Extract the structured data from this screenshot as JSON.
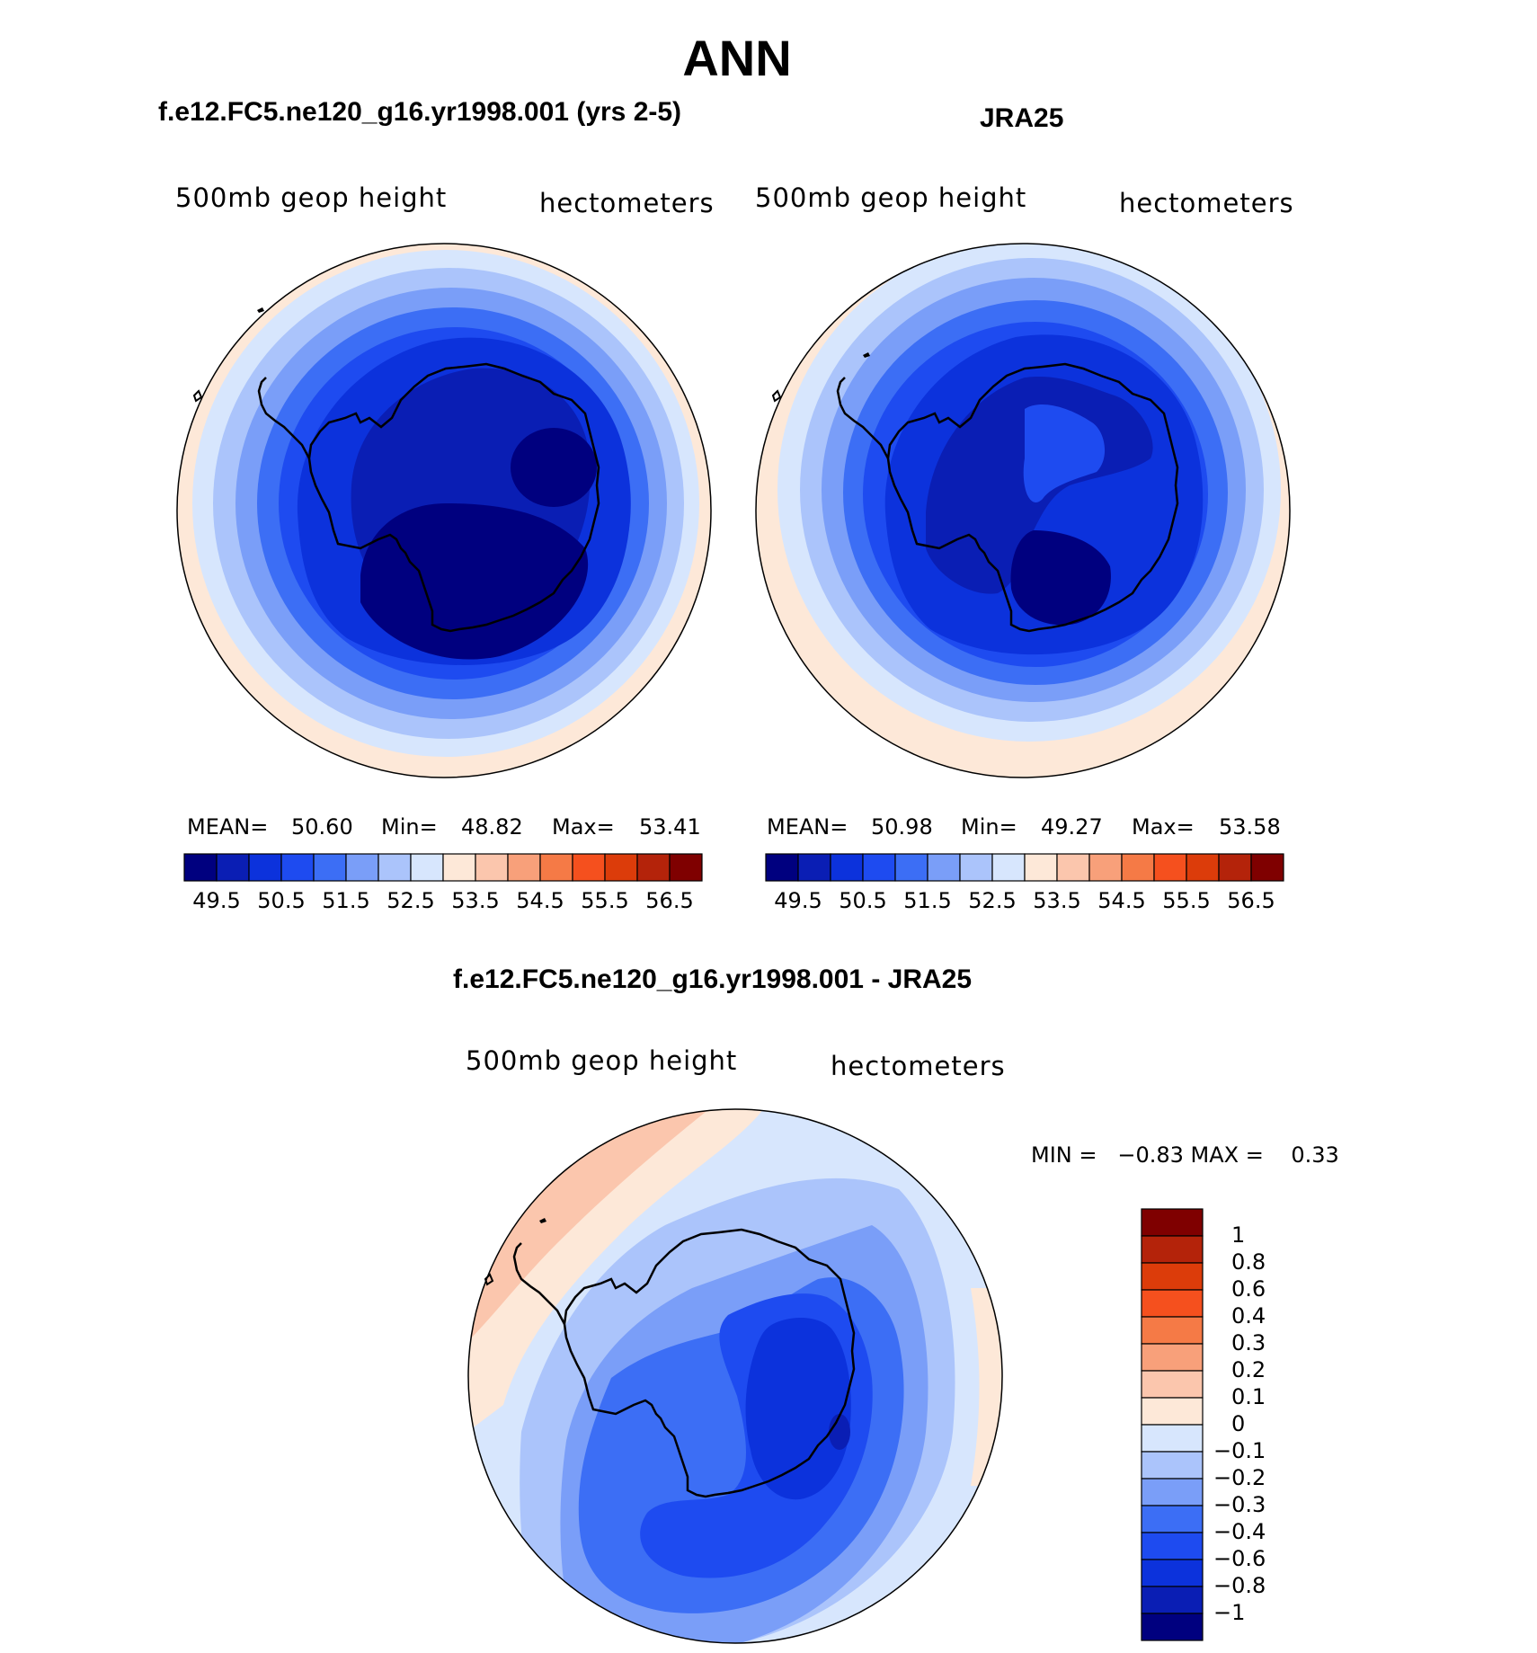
{
  "title": "ANN",
  "panel_left": {
    "subtitle": "f.e12.FC5.ne120_g16.yr1998.001 (yrs 2-5)",
    "left_label": "500mb geop height",
    "right_label": "hectometers",
    "mean_label": "MEAN=",
    "mean": "50.60",
    "min_label": "Min=",
    "min": "48.82",
    "max_label": "Max=",
    "max": "53.41"
  },
  "panel_right": {
    "subtitle": "JRA25",
    "left_label": "500mb geop height",
    "right_label": "hectometers",
    "mean_label": "MEAN=",
    "mean": "50.98",
    "min_label": "Min=",
    "min": "49.27",
    "max_label": "Max=",
    "max": "53.58"
  },
  "panel_diff": {
    "subtitle": "f.e12.FC5.ne120_g16.yr1998.001 - JRA25",
    "left_label": "500mb geop height",
    "right_label": "hectometers",
    "stats": "MIN =   −0.83 MAX =    0.33"
  },
  "abs_colorbar": {
    "colors": [
      "#00007f",
      "#0a1eb4",
      "#0c32dc",
      "#1e4bf0",
      "#3c6ef5",
      "#7a9ef8",
      "#abc4fb",
      "#d7e6fd",
      "#fde8d8",
      "#fbc6ad",
      "#f8a07a",
      "#f57a46",
      "#f5501e",
      "#dc3c0a",
      "#b4230a",
      "#7f0000"
    ],
    "labels": [
      "49.5",
      "50.5",
      "51.5",
      "52.5",
      "53.5",
      "54.5",
      "55.5",
      "56.5"
    ]
  },
  "diff_colorbar": {
    "colors": [
      "#7f0000",
      "#b4230a",
      "#dc3c0a",
      "#f5501e",
      "#f57a46",
      "#f8a07a",
      "#fbc6ad",
      "#fde8d8",
      "#d7e6fd",
      "#abc4fb",
      "#7a9ef8",
      "#3c6ef5",
      "#1e4bf0",
      "#0c32dc",
      "#0a1eb4",
      "#00007f"
    ],
    "labels": [
      "1",
      "0.8",
      "0.6",
      "0.4",
      "0.3",
      "0.2",
      "0.1",
      "0",
      "−0.1",
      "−0.2",
      "−0.3",
      "−0.4",
      "−0.6",
      "−0.8",
      "−1"
    ]
  }
}
